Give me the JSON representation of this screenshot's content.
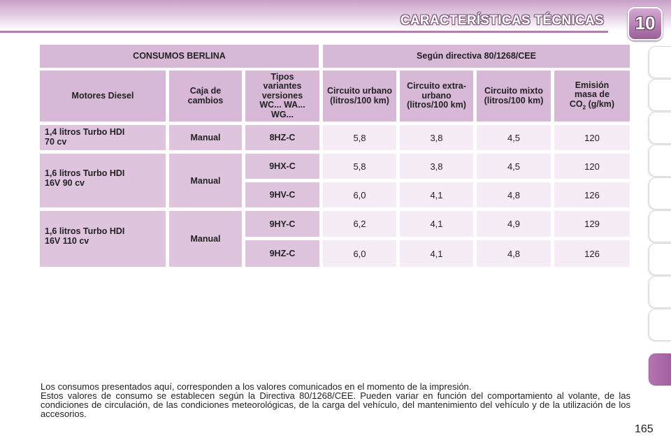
{
  "header": {
    "title": "CARACTERÍSTICAS TÉCNICAS",
    "chapter": "10"
  },
  "table": {
    "title_left": "CONSUMOS BERLINA",
    "title_right": "Según directiva 80/1268/CEE",
    "columns": [
      "Motores Diesel",
      "Caja de cambios",
      "Tipos variantes versiones WC... WA... WG...",
      "Circuito urbano (litros/100 km)",
      "Circuito extra-urbano (litros/100 km)",
      "Circuito mixto (litros/100 km)",
      "Emisión masa de CO2 (g/km)"
    ],
    "col_co2": {
      "line1": "Emisión",
      "line2": "masa de",
      "co": "CO",
      "sub": "2",
      "unit": " (g/km)"
    },
    "groups": [
      {
        "engine_l1": "1,4 litros Turbo HDI",
        "engine_l2": "70 cv",
        "gearbox": "Manual",
        "rows": [
          {
            "type": "8HZ-C",
            "urban": "5,8",
            "extra": "3,8",
            "mixed": "4,5",
            "co2": "120"
          }
        ]
      },
      {
        "engine_l1": "1,6 litros Turbo HDI",
        "engine_l2": "16V 90 cv",
        "gearbox": "Manual",
        "rows": [
          {
            "type": "9HX-C",
            "urban": "5,8",
            "extra": "3,8",
            "mixed": "4,5",
            "co2": "120"
          },
          {
            "type": "9HV-C",
            "urban": "6,0",
            "extra": "4,1",
            "mixed": "4,8",
            "co2": "126"
          }
        ]
      },
      {
        "engine_l1": "1,6 litros Turbo HDI",
        "engine_l2": "16V 110 cv",
        "gearbox": "Manual",
        "rows": [
          {
            "type": "9HY-C",
            "urban": "6,2",
            "extra": "4,1",
            "mixed": "4,9",
            "co2": "129"
          },
          {
            "type": "9HZ-C",
            "urban": "6,0",
            "extra": "4,1",
            "mixed": "4,8",
            "co2": "126"
          }
        ]
      }
    ]
  },
  "footnote": {
    "line1": "Los consumos presentados aquí, corresponden a los valores comunicados en el momento de la impresión.",
    "line2": "Estos valores de consumo se establecen según la Directiva 80/1268/CEE. Pueden variar en función del comportamiento al volante, de las condiciones de circulación, de las condiciones meteorológicas, de la carga del vehículo, del mantenimiento del vehículo y de la utilización de los accesorios."
  },
  "page_number": "165",
  "colors": {
    "header_cell": "#d7b8d6",
    "label_cell": "#dec4dd",
    "value_cell": "#f6ecf5",
    "accent": "#a05f9e"
  }
}
